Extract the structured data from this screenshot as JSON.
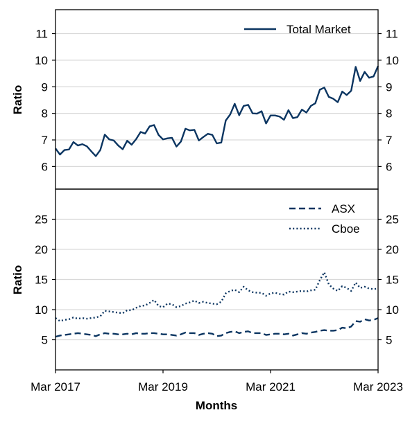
{
  "chart_data": [
    {
      "type": "line",
      "panel": "top",
      "ylabel": "Ratio",
      "ylim": [
        5.15,
        11.9
      ],
      "yticks": [
        6,
        7,
        8,
        9,
        10,
        11
      ],
      "grid": "y",
      "legend_position": "top-right",
      "x": [
        "2017-03",
        "2017-04",
        "2017-05",
        "2017-06",
        "2017-07",
        "2017-08",
        "2017-09",
        "2017-10",
        "2017-11",
        "2017-12",
        "2018-01",
        "2018-02",
        "2018-03",
        "2018-04",
        "2018-05",
        "2018-06",
        "2018-07",
        "2018-08",
        "2018-09",
        "2018-10",
        "2018-11",
        "2018-12",
        "2019-01",
        "2019-02",
        "2019-03",
        "2019-04",
        "2019-05",
        "2019-06",
        "2019-07",
        "2019-08",
        "2019-09",
        "2019-10",
        "2019-11",
        "2019-12",
        "2020-01",
        "2020-02",
        "2020-03",
        "2020-04",
        "2020-05",
        "2020-06",
        "2020-07",
        "2020-08",
        "2020-09",
        "2020-10",
        "2020-11",
        "2020-12",
        "2021-01",
        "2021-02",
        "2021-03",
        "2021-04",
        "2021-05",
        "2021-06",
        "2021-07",
        "2021-08",
        "2021-09",
        "2021-10",
        "2021-11",
        "2021-12",
        "2022-01",
        "2022-02",
        "2022-03",
        "2022-04",
        "2022-05",
        "2022-06",
        "2022-07",
        "2022-08",
        "2022-09",
        "2022-10",
        "2022-11",
        "2022-12",
        "2023-01",
        "2023-02",
        "2023-03"
      ],
      "series": [
        {
          "name": "Total Market",
          "style": "solid",
          "color": "#0b3561",
          "values": [
            6.68,
            6.45,
            6.62,
            6.64,
            6.92,
            6.79,
            6.84,
            6.76,
            6.57,
            6.39,
            6.62,
            7.2,
            7.02,
            6.98,
            6.79,
            6.65,
            6.97,
            6.82,
            7.03,
            7.3,
            7.24,
            7.51,
            7.56,
            7.19,
            7.02,
            7.06,
            7.08,
            6.75,
            6.94,
            7.42,
            7.36,
            7.38,
            6.98,
            7.11,
            7.23,
            7.19,
            6.87,
            6.9,
            7.73,
            7.96,
            8.36,
            7.93,
            8.28,
            8.32,
            8.0,
            7.99,
            8.08,
            7.62,
            7.92,
            7.92,
            7.88,
            7.76,
            8.12,
            7.82,
            7.86,
            8.14,
            8.03,
            8.28,
            8.38,
            8.89,
            8.97,
            8.62,
            8.55,
            8.42,
            8.82,
            8.69,
            8.85,
            9.75,
            9.22,
            9.56,
            9.34,
            9.39,
            9.78
          ]
        }
      ],
      "xticks": [
        "Mar 2017",
        "Mar 2019",
        "Mar 2021",
        "Mar 2023"
      ]
    },
    {
      "type": "line",
      "panel": "bottom",
      "ylabel": "Ratio",
      "xlabel": "Months",
      "ylim": [
        0,
        30
      ],
      "yticks": [
        5,
        10,
        15,
        20,
        25
      ],
      "grid": "y",
      "legend_position": "top-right",
      "x": [
        "2017-03",
        "2017-04",
        "2017-05",
        "2017-06",
        "2017-07",
        "2017-08",
        "2017-09",
        "2017-10",
        "2017-11",
        "2017-12",
        "2018-01",
        "2018-02",
        "2018-03",
        "2018-04",
        "2018-05",
        "2018-06",
        "2018-07",
        "2018-08",
        "2018-09",
        "2018-10",
        "2018-11",
        "2018-12",
        "2019-01",
        "2019-02",
        "2019-03",
        "2019-04",
        "2019-05",
        "2019-06",
        "2019-07",
        "2019-08",
        "2019-09",
        "2019-10",
        "2019-11",
        "2019-12",
        "2020-01",
        "2020-02",
        "2020-03",
        "2020-04",
        "2020-05",
        "2020-06",
        "2020-07",
        "2020-08",
        "2020-09",
        "2020-10",
        "2020-11",
        "2020-12",
        "2021-01",
        "2021-02",
        "2021-03",
        "2021-04",
        "2021-05",
        "2021-06",
        "2021-07",
        "2021-08",
        "2021-09",
        "2021-10",
        "2021-11",
        "2021-12",
        "2022-01",
        "2022-02",
        "2022-03",
        "2022-04",
        "2022-05",
        "2022-06",
        "2022-07",
        "2022-08",
        "2022-09",
        "2022-10",
        "2022-11",
        "2022-12",
        "2023-01",
        "2023-02",
        "2023-03"
      ],
      "series": [
        {
          "name": "ASX",
          "style": "dashed",
          "color": "#0b3561",
          "values": [
            5.5,
            5.7,
            5.8,
            5.9,
            6.0,
            6.1,
            6.0,
            5.9,
            5.8,
            5.6,
            5.9,
            6.1,
            6.0,
            6.0,
            5.9,
            5.9,
            6.0,
            5.9,
            6.1,
            6.0,
            6.0,
            6.1,
            6.1,
            6.0,
            5.9,
            5.9,
            5.8,
            5.7,
            5.9,
            6.2,
            6.1,
            6.1,
            5.8,
            6.0,
            6.1,
            6.0,
            5.6,
            5.7,
            6.1,
            6.3,
            6.4,
            6.1,
            6.3,
            6.4,
            6.1,
            6.1,
            6.1,
            5.8,
            5.9,
            6.0,
            6.0,
            5.9,
            6.0,
            5.7,
            5.9,
            6.1,
            6.0,
            6.2,
            6.3,
            6.5,
            6.6,
            6.5,
            6.5,
            6.6,
            7.0,
            6.9,
            7.2,
            8.1,
            8.0,
            8.4,
            8.2,
            8.3,
            8.6
          ]
        },
        {
          "name": "Cboe",
          "style": "dotted",
          "color": "#0b3561",
          "values": [
            8.6,
            8.1,
            8.3,
            8.4,
            8.7,
            8.5,
            8.6,
            8.5,
            8.6,
            8.7,
            8.9,
            9.8,
            9.7,
            9.6,
            9.5,
            9.4,
            9.9,
            9.9,
            10.3,
            10.6,
            10.7,
            11.1,
            11.6,
            10.6,
            10.4,
            11.0,
            10.9,
            10.4,
            10.6,
            11.0,
            11.2,
            11.5,
            11.1,
            11.3,
            11.1,
            11.0,
            10.9,
            11.3,
            12.7,
            13.1,
            13.3,
            12.9,
            13.8,
            13.2,
            12.9,
            12.8,
            12.8,
            12.3,
            12.7,
            12.8,
            12.6,
            12.5,
            13.0,
            12.9,
            13.0,
            13.1,
            13.0,
            13.2,
            13.3,
            14.9,
            16.2,
            14.2,
            13.5,
            13.1,
            13.9,
            13.6,
            13.1,
            14.5,
            13.6,
            13.8,
            13.5,
            13.4,
            13.5
          ]
        }
      ],
      "xticks": [
        "Mar 2017",
        "Mar 2019",
        "Mar 2021",
        "Mar 2023"
      ]
    }
  ]
}
